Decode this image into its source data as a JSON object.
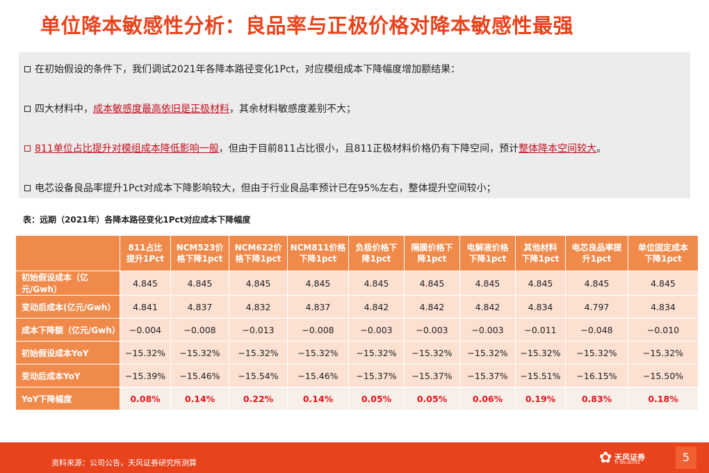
{
  "title": "单位降本敏感性分析：良品率与正极价格对降本敏感性最强",
  "bullets": [
    {
      "pre": "在初始假设的条件下，我们调试2021年各降本路径变化1Pct，对应模组成本下降幅度增加额结果：",
      "hl1": "",
      "mid": "",
      "hl2": "",
      "post": ""
    },
    {
      "pre": "四大材料中，",
      "hl1": "成本敏感度最高依旧是正极材料",
      "mid": "，其余材料敏感度差别不大；",
      "hl2": "",
      "post": ""
    },
    {
      "pre": "",
      "hl1": "811单位占比提升对模组成本降低影响一般",
      "mid": "，但由于目前811占比很小，且811正极材料价格仍有下降空间，预计",
      "hl2": "整体降本空间较大",
      "post": "。"
    },
    {
      "pre": "电芯设备良品率提升1Pct对成本下降影响较大，但由于行业良品率预计已在95%左右，整体提升空间较小；",
      "hl1": "",
      "mid": "",
      "hl2": "",
      "post": ""
    }
  ],
  "caption": "表：远期（2021年）各降本路径变化1Pct对应成本下降幅度",
  "table": {
    "headers": [
      [
        "811占比",
        "提升1Pct"
      ],
      [
        "NCM523价",
        "格下降1pct"
      ],
      [
        "NCM622价",
        "格下降1pct"
      ],
      [
        "NCM811价格",
        "下降1pct"
      ],
      [
        "负极价格下",
        "降1pct"
      ],
      [
        "隔膜价格下",
        "降1pct"
      ],
      [
        "电解液价格",
        "下降1pct"
      ],
      [
        "其他材料",
        "下降1pct"
      ],
      [
        "电芯良品率提",
        "升1pct"
      ],
      [
        "单位固定成本",
        "下降1pct"
      ]
    ],
    "rows": [
      {
        "label": "初始假设成本（亿元/Gwh）",
        "values": [
          "4.845",
          "4.845",
          "4.845",
          "4.845",
          "4.845",
          "4.845",
          "4.845",
          "4.845",
          "4.845",
          "4.845"
        ]
      },
      {
        "label": "变动后成本(亿元/Gwh）",
        "values": [
          "4.841",
          "4.837",
          "4.832",
          "4.837",
          "4.842",
          "4.842",
          "4.842",
          "4.834",
          "4.797",
          "4.834"
        ]
      },
      {
        "label": "成本下降额（亿元/Gwh）",
        "values": [
          "−0.004",
          "−0.008",
          "−0.013",
          "−0.008",
          "−0.003",
          "−0.003",
          "−0.003",
          "−0.011",
          "−0.048",
          "−0.010"
        ]
      },
      {
        "label": "初始假设成本YoY",
        "values": [
          "−15.32%",
          "−15.32%",
          "−15.32%",
          "−15.32%",
          "−15.32%",
          "−15.32%",
          "−15.32%",
          "−15.32%",
          "−15.32%",
          "−15.32%"
        ]
      },
      {
        "label": "变动后成本YoY",
        "values": [
          "−15.39%",
          "−15.46%",
          "−15.54%",
          "−15.46%",
          "−15.37%",
          "−15.37%",
          "−15.37%",
          "−15.51%",
          "−16.15%",
          "−15.50%"
        ]
      },
      {
        "label": "YoY下降幅度",
        "values": [
          "0.08%",
          "0.14%",
          "0.22%",
          "0.14%",
          "0.05%",
          "0.05%",
          "0.06%",
          "0.19%",
          "0.83%",
          "0.18%"
        ]
      }
    ]
  },
  "footer": {
    "source": "资料来源：公司公告，天风证券研究所测算",
    "logo_cn": "天风证券",
    "logo_en": "TF SECURITIES",
    "page": "5"
  },
  "colors": {
    "title": "#e8431c",
    "header_fill": "#f08a4b",
    "cell_fill": "#fce0d2",
    "highlight_text": "#c0111f",
    "footer_bar": "#e8431c"
  }
}
